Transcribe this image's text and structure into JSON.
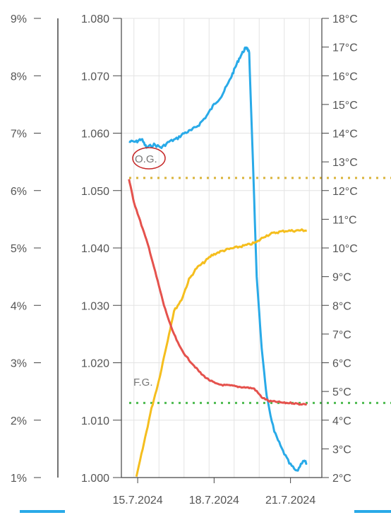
{
  "chart_data": {
    "type": "line",
    "title": "",
    "grid": true,
    "axes": {
      "left_pct": {
        "range": [
          1,
          9
        ],
        "ticks": [
          "9%",
          "8%",
          "7%",
          "6%",
          "5%",
          "4%",
          "3%",
          "2%",
          "1%"
        ]
      },
      "left_gravity": {
        "range": [
          1.0,
          1.08
        ],
        "ticks": [
          "1.080",
          "1.070",
          "1.060",
          "1.050",
          "1.040",
          "1.030",
          "1.020",
          "1.010",
          "1.000"
        ]
      },
      "right_temp": {
        "range": [
          2,
          18
        ],
        "ticks": [
          "18°C",
          "17°C",
          "16°C",
          "15°C",
          "14°C",
          "13°C",
          "12°C",
          "11°C",
          "10°C",
          "9°C",
          "8°C",
          "7°C",
          "6°C",
          "5°C",
          "4°C",
          "3°C",
          "2°C"
        ]
      },
      "x": {
        "unit": "days",
        "range": [
          14.5,
          22.5
        ],
        "tick_labels": [
          "15.7.2024",
          "18.7.2024",
          "21.7.2024"
        ]
      }
    },
    "annotations": {
      "og_label": "O.G.",
      "og_value": 1.0522,
      "fg_label": "F.G.",
      "fg_value": 1.013
    },
    "series": [
      {
        "axis": "right_temp",
        "color": "#29aae8",
        "points": [
          [
            14.8,
            13.7
          ],
          [
            15.1,
            13.7
          ],
          [
            15.3,
            13.8
          ],
          [
            15.5,
            13.5
          ],
          [
            15.8,
            13.6
          ],
          [
            16.1,
            13.5
          ],
          [
            16.4,
            13.7
          ],
          [
            16.7,
            13.8
          ],
          [
            17.0,
            14.0
          ],
          [
            17.3,
            14.1
          ],
          [
            17.6,
            14.3
          ],
          [
            17.9,
            14.6
          ],
          [
            18.2,
            15.0
          ],
          [
            18.5,
            15.3
          ],
          [
            18.8,
            15.8
          ],
          [
            19.0,
            16.2
          ],
          [
            19.2,
            16.6
          ],
          [
            19.4,
            16.9
          ],
          [
            19.5,
            17.0
          ],
          [
            19.6,
            16.8
          ],
          [
            19.75,
            13.0
          ],
          [
            19.9,
            9.0
          ],
          [
            20.1,
            6.5
          ],
          [
            20.3,
            4.8
          ],
          [
            20.6,
            3.6
          ],
          [
            20.9,
            3.0
          ],
          [
            21.2,
            2.5
          ],
          [
            21.5,
            2.2
          ],
          [
            21.75,
            2.6
          ],
          [
            21.9,
            2.5
          ]
        ]
      },
      {
        "axis": "left_pct",
        "color": "#f5be1e",
        "points": [
          [
            15.1,
            1.0
          ],
          [
            15.4,
            1.6
          ],
          [
            15.7,
            2.2
          ],
          [
            16.0,
            2.7
          ],
          [
            16.3,
            3.3
          ],
          [
            16.6,
            3.9
          ],
          [
            16.9,
            4.1
          ],
          [
            17.2,
            4.45
          ],
          [
            17.5,
            4.65
          ],
          [
            17.8,
            4.75
          ],
          [
            18.1,
            4.87
          ],
          [
            18.4,
            4.93
          ],
          [
            18.7,
            4.97
          ],
          [
            19.0,
            5.0
          ],
          [
            19.3,
            5.03
          ],
          [
            19.6,
            5.06
          ],
          [
            19.9,
            5.1
          ],
          [
            20.2,
            5.2
          ],
          [
            20.5,
            5.25
          ],
          [
            20.8,
            5.28
          ],
          [
            21.1,
            5.3
          ],
          [
            21.4,
            5.3
          ],
          [
            21.7,
            5.31
          ],
          [
            21.9,
            5.3
          ]
        ]
      },
      {
        "axis": "left_gravity",
        "color": "#e5524d",
        "points": [
          [
            14.8,
            1.052
          ],
          [
            15.0,
            1.048
          ],
          [
            15.3,
            1.044
          ],
          [
            15.6,
            1.04
          ],
          [
            15.9,
            1.035
          ],
          [
            16.2,
            1.03
          ],
          [
            16.5,
            1.026
          ],
          [
            16.8,
            1.023
          ],
          [
            17.1,
            1.021
          ],
          [
            17.4,
            1.0195
          ],
          [
            17.7,
            1.018
          ],
          [
            18.0,
            1.017
          ],
          [
            18.3,
            1.0163
          ],
          [
            18.6,
            1.0161
          ],
          [
            18.9,
            1.016
          ],
          [
            19.2,
            1.0158
          ],
          [
            19.5,
            1.0157
          ],
          [
            19.8,
            1.0155
          ],
          [
            20.1,
            1.014
          ],
          [
            20.4,
            1.0133
          ],
          [
            20.7,
            1.0132
          ],
          [
            21.0,
            1.013
          ],
          [
            21.3,
            1.013
          ],
          [
            21.6,
            1.0128
          ],
          [
            21.9,
            1.0128
          ]
        ]
      }
    ]
  }
}
